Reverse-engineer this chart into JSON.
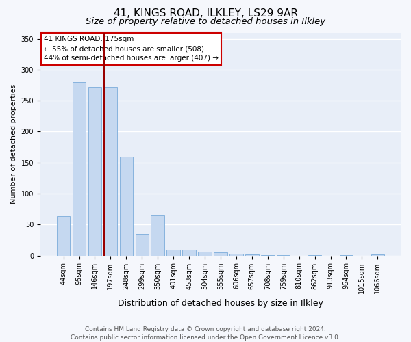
{
  "title1": "41, KINGS ROAD, ILKLEY, LS29 9AR",
  "title2": "Size of property relative to detached houses in Ilkley",
  "xlabel": "Distribution of detached houses by size in Ilkley",
  "ylabel": "Number of detached properties",
  "categories": [
    "44sqm",
    "95sqm",
    "146sqm",
    "197sqm",
    "248sqm",
    "299sqm",
    "350sqm",
    "401sqm",
    "453sqm",
    "504sqm",
    "555sqm",
    "606sqm",
    "657sqm",
    "708sqm",
    "759sqm",
    "810sqm",
    "862sqm",
    "913sqm",
    "964sqm",
    "1015sqm",
    "1066sqm"
  ],
  "values": [
    64,
    280,
    272,
    272,
    160,
    35,
    65,
    10,
    10,
    6,
    5,
    3,
    2,
    1,
    1,
    0,
    1,
    0,
    1,
    0,
    2
  ],
  "bar_color": "#c5d8f0",
  "bar_edge_color": "#7aacda",
  "marker_label": "41 KINGS ROAD: 175sqm",
  "annotation_line1": "← 55% of detached houses are smaller (508)",
  "annotation_line2": "44% of semi-detached houses are larger (407) →",
  "annotation_box_color": "#ffffff",
  "annotation_box_edge": "#cc0000",
  "vline_color": "#990000",
  "footer1": "Contains HM Land Registry data © Crown copyright and database right 2024.",
  "footer2": "Contains public sector information licensed under the Open Government Licence v3.0.",
  "ylim": [
    0,
    360
  ],
  "yticks": [
    0,
    50,
    100,
    150,
    200,
    250,
    300,
    350
  ],
  "bg_color": "#e8eef8",
  "grid_color": "#ffffff",
  "fig_bg_color": "#f5f7fc",
  "title1_fontsize": 11,
  "title2_fontsize": 9.5,
  "xlabel_fontsize": 9,
  "ylabel_fontsize": 8,
  "tick_fontsize": 7,
  "footer_fontsize": 6.5,
  "annot_fontsize": 7.5
}
